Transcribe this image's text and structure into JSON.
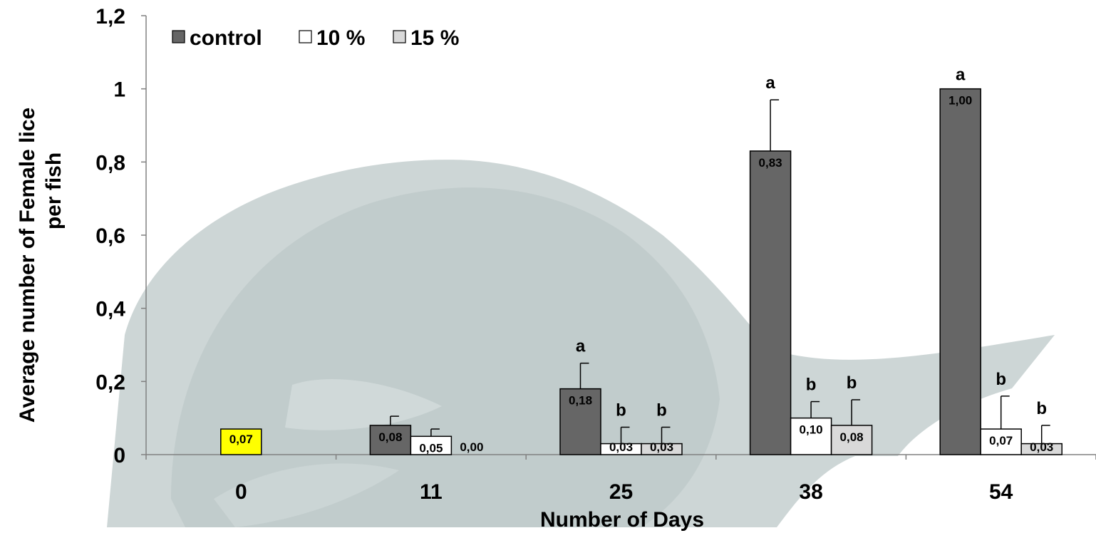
{
  "chart_data": {
    "type": "bar",
    "title": "",
    "xlabel": "Number of Days",
    "ylabel": "Average number of Female lice per fish",
    "ylabel_lines": [
      "Average number of Female lice",
      "per fish"
    ],
    "ylim": [
      0,
      1.2
    ],
    "yticks": [
      0,
      0.2,
      0.4,
      0.6,
      0.8,
      1,
      1.2
    ],
    "ytick_labels": [
      "0",
      "0,2",
      "0,4",
      "0,6",
      "0,8",
      "1",
      "1,2"
    ],
    "grid": false,
    "legend_position": "top-left",
    "categories": [
      "0",
      "11",
      "25",
      "38",
      "54"
    ],
    "series": [
      {
        "name": "control",
        "color": "#666666",
        "values": [
          null,
          0.08,
          0.18,
          0.83,
          1.0
        ],
        "errors": [
          null,
          0.025,
          0.07,
          0.14,
          0.0
        ],
        "labels": [
          null,
          "0,08",
          "0,18",
          "0,83",
          "1,00"
        ],
        "letters": [
          null,
          null,
          "a",
          "a",
          "a"
        ]
      },
      {
        "name": "10 %",
        "color": "#ffffff",
        "values": [
          null,
          0.05,
          0.03,
          0.1,
          0.07
        ],
        "errors": [
          null,
          0.02,
          0.045,
          0.045,
          0.09
        ],
        "labels": [
          null,
          "0,05",
          "0,03",
          "0,10",
          "0,07"
        ],
        "letters": [
          null,
          null,
          "b",
          "b",
          "b"
        ]
      },
      {
        "name": "15 %",
        "color": "#d9d9d9",
        "values": [
          null,
          0.0,
          0.03,
          0.08,
          0.03
        ],
        "errors": [
          null,
          null,
          0.045,
          0.07,
          0.05
        ],
        "labels": [
          null,
          "0,00",
          "0,03",
          "0,08",
          "0,03"
        ],
        "letters": [
          null,
          null,
          "b",
          "b",
          "b"
        ]
      }
    ],
    "initial": {
      "category_index": 0,
      "value": 0.07,
      "label": "0,07",
      "color": "#ffff00"
    },
    "background_color": "#c7d1d1"
  }
}
